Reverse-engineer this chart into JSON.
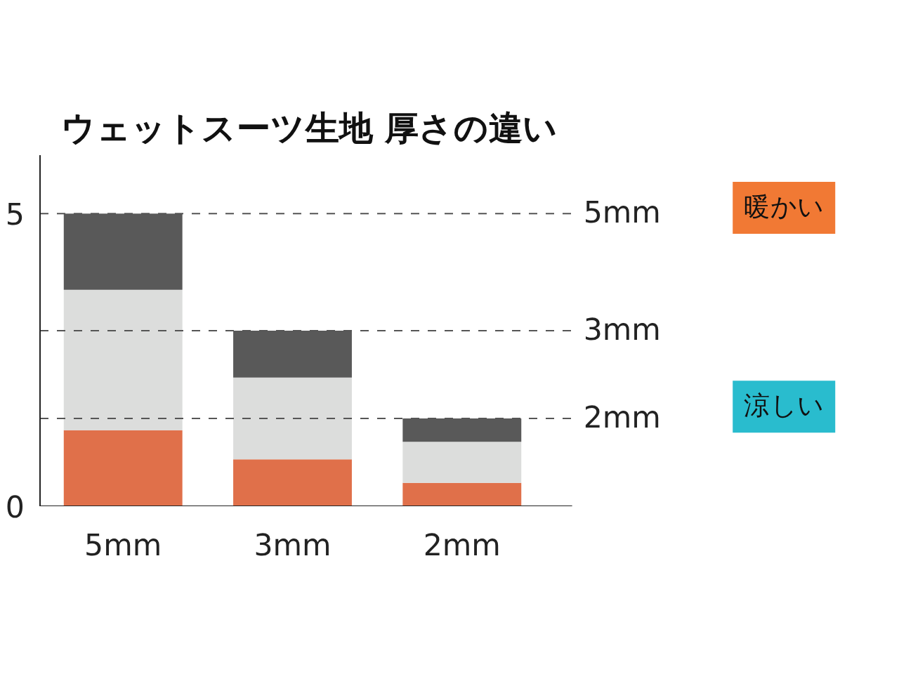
{
  "chart_data": {
    "type": "bar",
    "title": "ウェットスーツ生地 厚さの違い",
    "categories": [
      "5mm",
      "3mm",
      "2mm"
    ],
    "stacked": true,
    "series": [
      {
        "color": "#e0704a",
        "values": [
          1.3,
          0.8,
          0.4
        ]
      },
      {
        "color": "#dcdddc",
        "values": [
          2.4,
          1.4,
          0.7
        ]
      },
      {
        "color": "#595959",
        "values": [
          1.3,
          0.8,
          0.4
        ]
      }
    ],
    "ylim": [
      0,
      6
    ],
    "yticks": [
      0,
      5
    ],
    "grid": false,
    "ref_lines": [
      {
        "axis": "y",
        "value": 5,
        "label": "5mm",
        "color": "#555555",
        "line_style": "dashed"
      },
      {
        "axis": "y",
        "value": 3,
        "label": "3mm",
        "color": "#555555",
        "line_style": "dashed"
      },
      {
        "axis": "y",
        "value": 1.5,
        "label": "2mm",
        "color": "#555555",
        "line_style": "dashed"
      }
    ],
    "annotations": [
      "暖かい",
      "涼しい"
    ]
  }
}
